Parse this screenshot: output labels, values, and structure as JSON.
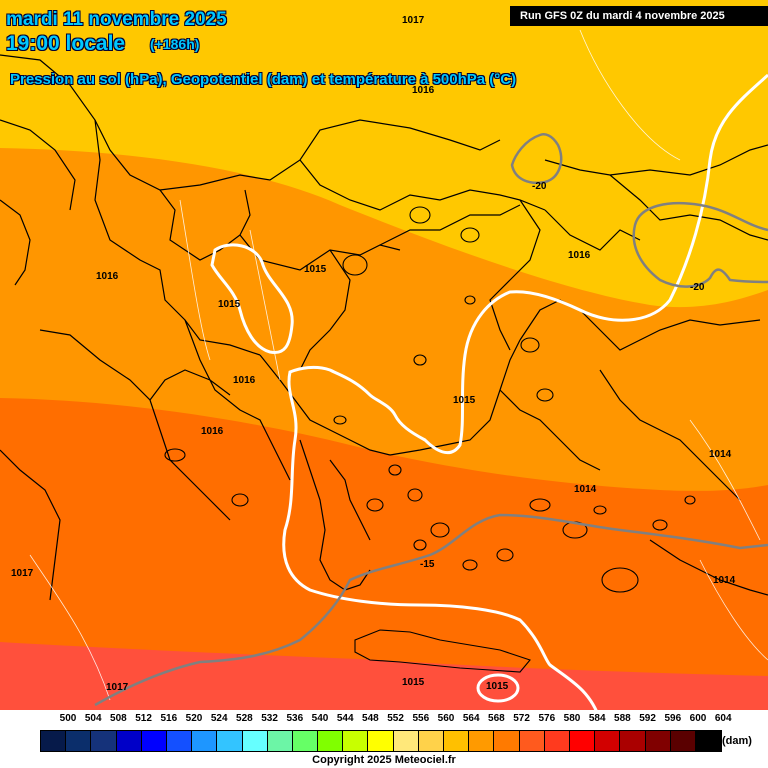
{
  "header": {
    "date": "mardi 11 novembre 2025",
    "hour": "19:00 locale",
    "lead": "(+186h)",
    "subtitle": "Pression au sol (hPa), Geopotentiel (dam) et température à 500hPa (°C)",
    "run": "Run GFS 0Z du mardi 4 novembre 2025"
  },
  "isobar_labels": [
    "1017",
    "1016",
    "1016",
    "1015",
    "1015",
    "1016",
    "1016",
    "1015",
    "1016",
    "1014",
    "1014",
    "1014",
    "1015",
    "1015",
    "1017",
    "1017"
  ],
  "isotherm_labels": [
    "-20",
    "-20",
    "-15"
  ],
  "scale": {
    "unit": "(dam)",
    "values": [
      "500",
      "504",
      "508",
      "512",
      "516",
      "520",
      "524",
      "528",
      "532",
      "536",
      "540",
      "544",
      "548",
      "552",
      "556",
      "560",
      "564",
      "568",
      "572",
      "576",
      "580",
      "584",
      "588",
      "592",
      "596",
      "600",
      "604"
    ],
    "colors": [
      "#061a4a",
      "#0b2e6b",
      "#15327a",
      "#0000c8",
      "#0000ff",
      "#1450ff",
      "#1e96ff",
      "#33c4ff",
      "#66ffff",
      "#6cf5a6",
      "#66ff66",
      "#80ff00",
      "#c8ff00",
      "#ffff00",
      "#ffe87a",
      "#ffd24a",
      "#ffc000",
      "#ff9a00",
      "#ff7a00",
      "#ff5a1e",
      "#ff3a1e",
      "#ff0000",
      "#d20000",
      "#aa0000",
      "#800000",
      "#5a0000",
      "#000000"
    ]
  },
  "field_colors": {
    "band_576": "#ffc800",
    "band_572": "#ff9600",
    "band_568": "#ff6e00",
    "band_564": "#ff503c",
    "borders": "#000000",
    "isobars": "#ffffff",
    "isotherms": "#808080"
  },
  "copyright": "Copyright 2025 Meteociel.fr"
}
